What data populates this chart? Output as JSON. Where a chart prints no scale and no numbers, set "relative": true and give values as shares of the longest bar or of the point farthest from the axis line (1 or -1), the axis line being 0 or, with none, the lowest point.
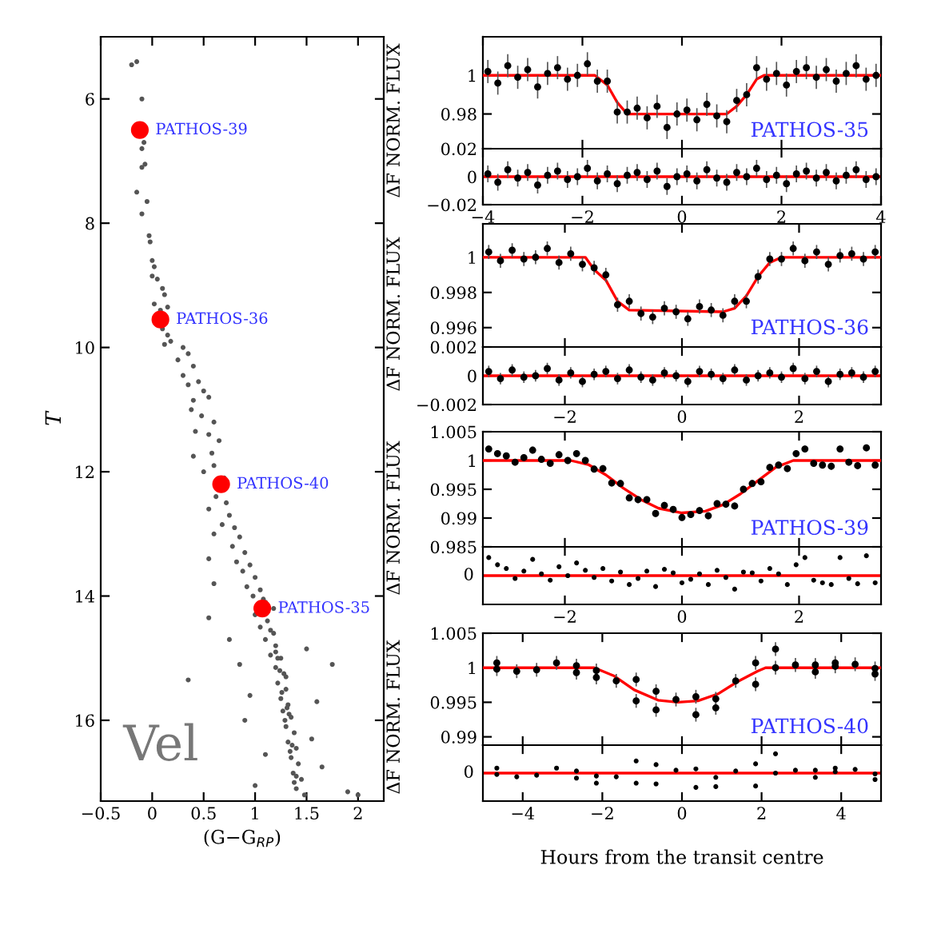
{
  "chart_data": [
    {
      "type": "scatter",
      "title": "Vel",
      "xlabel": "(G−G$_{RP}$)",
      "ylabel": "T",
      "xlim": [
        -0.5,
        2.25
      ],
      "ylim": [
        17.3,
        5
      ],
      "xticks": [
        {
          "value": -0.5,
          "label": "−0.5"
        },
        0,
        0.5,
        1,
        1.5,
        2
      ],
      "yticks": [
        6,
        8,
        10,
        12,
        14,
        16
      ],
      "annotations": [
        {
          "text": "PATHOS-39",
          "x": -0.12,
          "y": 6.5
        },
        {
          "text": "PATHOS-36",
          "x": 0.08,
          "y": 9.55
        },
        {
          "text": "PATHOS-40",
          "x": 0.67,
          "y": 12.2
        },
        {
          "text": "PATHOS-35",
          "x": 1.07,
          "y": 14.2
        }
      ],
      "series": [
        {
          "color": "#555555",
          "marker": "circle",
          "x": [
            -0.2,
            -0.15,
            -0.1,
            -0.08,
            -0.1,
            -0.07,
            -0.1,
            -0.15,
            -0.05,
            -0.1,
            -0.03,
            -0.02,
            0.0,
            0.02,
            0.0,
            0.05,
            0.1,
            0.12,
            0.02,
            0.08,
            0.15,
            0.1,
            0.15,
            0.18,
            0.12,
            0.3,
            0.35,
            0.25,
            0.4,
            0.3,
            0.45,
            0.35,
            0.5,
            0.4,
            0.55,
            0.38,
            0.48,
            0.6,
            0.42,
            0.55,
            0.65,
            0.4,
            0.58,
            0.6,
            0.5,
            0.7,
            0.62,
            0.72,
            0.55,
            0.75,
            0.68,
            0.8,
            0.6,
            0.85,
            0.78,
            0.9,
            0.55,
            0.82,
            0.95,
            0.88,
            1.0,
            0.6,
            0.92,
            1.05,
            0.98,
            0.55,
            1.1,
            1.0,
            1.12,
            1.05,
            1.18,
            0.75,
            1.1,
            1.2,
            1.15,
            1.25,
            0.85,
            1.5,
            1.2,
            1.28,
            0.35,
            1.75,
            1.22,
            1.3,
            0.95,
            1.25,
            1.32,
            1.6,
            1.27,
            1.35,
            0.9,
            1.3,
            1.38,
            1.55,
            1.32,
            1.4,
            1.1,
            1.35,
            1.42,
            1.65,
            1.37,
            1.45,
            1.0,
            1.4,
            1.48,
            1.9,
            2.0,
            1.22,
            1.3,
            1.33,
            1.36,
            1.4,
            1.38,
            1.18,
            1.15,
            1.08,
            1.26,
            1.29,
            1.34,
            1.31,
            1.24,
            1.2
          ],
          "values": [
            5.45,
            5.4,
            6.0,
            6.7,
            6.8,
            7.05,
            7.1,
            7.5,
            7.65,
            7.85,
            8.2,
            8.3,
            8.6,
            8.7,
            8.85,
            8.9,
            9.05,
            9.15,
            9.3,
            9.4,
            9.35,
            9.7,
            9.8,
            9.9,
            9.95,
            10.0,
            10.1,
            10.2,
            10.3,
            10.45,
            10.55,
            10.6,
            10.7,
            10.85,
            10.8,
            11.0,
            11.1,
            11.2,
            11.35,
            11.4,
            11.5,
            11.75,
            11.7,
            11.9,
            12.0,
            12.1,
            12.4,
            12.5,
            12.6,
            12.7,
            12.85,
            12.9,
            13.0,
            13.05,
            13.2,
            13.3,
            13.4,
            13.45,
            13.5,
            13.6,
            13.7,
            13.8,
            13.85,
            13.9,
            14.0,
            14.35,
            14.1,
            14.3,
            14.4,
            14.5,
            14.6,
            14.7,
            14.7,
            14.8,
            14.95,
            15.0,
            15.1,
            14.85,
            15.15,
            15.25,
            15.35,
            15.1,
            15.4,
            15.5,
            15.6,
            15.65,
            15.75,
            15.7,
            15.85,
            15.95,
            16.0,
            16.1,
            16.2,
            16.3,
            16.35,
            16.45,
            16.55,
            16.6,
            16.7,
            16.75,
            16.85,
            16.95,
            17.05,
            17.1,
            17.2,
            17.15,
            17.2,
            15.0,
            15.3,
            15.9,
            16.4,
            16.9,
            17.0,
            14.2,
            14.55,
            14.05,
            15.55,
            16.0,
            16.5,
            15.8,
            15.2,
            14.9
          ]
        },
        {
          "color": "#ff0000",
          "marker": "circle",
          "x": [
            -0.12,
            0.08,
            0.67,
            1.07
          ],
          "values": [
            6.5,
            9.55,
            12.2,
            14.2
          ]
        }
      ]
    },
    {
      "type": "scatter",
      "ylabel": "ΔF NORM. FLUX",
      "annotations": [
        "PATHOS-35"
      ],
      "xlim": [
        -4,
        4
      ],
      "ylim": [
        0.962,
        1.02
      ],
      "xticks": [
        {
          "value": -4,
          "label": null
        },
        {
          "value": -2,
          "label": null
        },
        {
          "value": 0,
          "label": null
        },
        {
          "value": 2,
          "label": null
        },
        {
          "value": 4,
          "label": null
        }
      ],
      "yticks": [
        1,
        0.98
      ],
      "tick_labels": "y",
      "series": [
        {
          "color": "#000000",
          "marker": "circle",
          "x": [
            -3.9,
            -3.7,
            -3.5,
            -3.3,
            -3.1,
            -2.9,
            -2.7,
            -2.5,
            -2.3,
            -2.1,
            -1.9,
            -1.7,
            -1.5,
            -1.3,
            -1.1,
            -0.9,
            -0.7,
            -0.5,
            -0.3,
            -0.1,
            0.1,
            0.3,
            0.5,
            0.7,
            0.9,
            1.1,
            1.3,
            1.5,
            1.7,
            1.9,
            2.1,
            2.3,
            2.5,
            2.7,
            2.9,
            3.1,
            3.3,
            3.5,
            3.7,
            3.9
          ],
          "values": [
            1.002,
            0.996,
            1.005,
            0.999,
            1.003,
            0.994,
            1.001,
            1.004,
            0.998,
            1.0,
            1.006,
            0.997,
            0.997,
            0.981,
            0.981,
            0.983,
            0.978,
            0.984,
            0.973,
            0.98,
            0.982,
            0.977,
            0.985,
            0.979,
            0.976,
            0.987,
            0.99,
            1.004,
            0.998,
            1.001,
            0.995,
            1.002,
            1.004,
            0.999,
            1.003,
            0.997,
            1.001,
            1.005,
            0.998,
            1.0
          ],
          "errors": [
            0.006,
            0.006,
            0.006,
            0.006,
            0.006,
            0.006,
            0.006,
            0.006,
            0.006,
            0.006,
            0.006,
            0.006,
            0.006,
            0.006,
            0.006,
            0.006,
            0.006,
            0.006,
            0.006,
            0.006,
            0.006,
            0.006,
            0.006,
            0.006,
            0.006,
            0.006,
            0.006,
            0.006,
            0.006,
            0.006,
            0.006,
            0.006,
            0.006,
            0.006,
            0.006,
            0.006,
            0.006,
            0.006,
            0.006,
            0.006
          ]
        },
        {
          "type": "line",
          "color": "#ff0000",
          "x": [
            -4,
            -1.75,
            -1.5,
            -1.3,
            -1.1,
            0.9,
            1.1,
            1.3,
            1.5,
            1.65,
            4
          ],
          "values": [
            1,
            1,
            0.995,
            0.986,
            0.98,
            0.98,
            0.984,
            0.99,
            0.998,
            1,
            1
          ]
        }
      ]
    },
    {
      "type": "scatter",
      "xlim": [
        -4,
        4
      ],
      "ylim": [
        -0.02,
        0.02
      ],
      "xticks": [
        {
          "value": -4,
          "label": "−4"
        },
        {
          "value": -2,
          "label": "−2"
        },
        0,
        2,
        4
      ],
      "yticks": [
        0.02,
        0,
        {
          "value": -0.02,
          "label": "−0.02"
        }
      ],
      "ref_lines": [
        {
          "axis": "y",
          "value": 0,
          "color": "#ff0000"
        }
      ],
      "series": [
        {
          "color": "#000000",
          "marker": "circle",
          "x": [
            -3.9,
            -3.7,
            -3.5,
            -3.3,
            -3.1,
            -2.9,
            -2.7,
            -2.5,
            -2.3,
            -2.1,
            -1.9,
            -1.7,
            -1.5,
            -1.3,
            -1.1,
            -0.9,
            -0.7,
            -0.5,
            -0.3,
            -0.1,
            0.1,
            0.3,
            0.5,
            0.7,
            0.9,
            1.1,
            1.3,
            1.5,
            1.7,
            1.9,
            2.1,
            2.3,
            2.5,
            2.7,
            2.9,
            3.1,
            3.3,
            3.5,
            3.7,
            3.9
          ],
          "values": [
            0.002,
            -0.004,
            0.005,
            -0.001,
            0.003,
            -0.006,
            0.001,
            0.004,
            -0.002,
            0.0,
            0.006,
            -0.003,
            0.002,
            -0.005,
            0.001,
            0.003,
            -0.002,
            0.004,
            -0.007,
            0.0,
            0.002,
            -0.003,
            0.005,
            -0.001,
            -0.004,
            0.003,
            0.0,
            0.006,
            -0.002,
            0.001,
            -0.005,
            0.002,
            0.004,
            -0.001,
            0.003,
            -0.003,
            0.001,
            0.005,
            -0.002,
            0.0
          ],
          "errors": [
            0.006,
            0.006,
            0.006,
            0.006,
            0.006,
            0.006,
            0.006,
            0.006,
            0.006,
            0.006,
            0.006,
            0.006,
            0.006,
            0.006,
            0.006,
            0.006,
            0.006,
            0.006,
            0.006,
            0.006,
            0.006,
            0.006,
            0.006,
            0.006,
            0.006,
            0.006,
            0.006,
            0.006,
            0.006,
            0.006,
            0.006,
            0.006,
            0.006,
            0.006,
            0.006,
            0.006,
            0.006,
            0.006,
            0.006,
            0.006
          ]
        }
      ]
    },
    {
      "type": "scatter",
      "ylabel": "ΔF NORM. FLUX",
      "annotations": [
        "PATHOS-36"
      ],
      "xlim": [
        -3.4,
        3.4
      ],
      "ylim": [
        0.9949,
        1.0019
      ],
      "xticks": [
        {
          "value": -2,
          "label": null
        },
        {
          "value": 0,
          "label": null
        },
        {
          "value": 2,
          "label": null
        }
      ],
      "yticks": [
        1,
        0.998,
        0.996
      ],
      "tick_labels": "y",
      "series": [
        {
          "color": "#000000",
          "marker": "circle",
          "x": [
            -3.3,
            -3.1,
            -2.9,
            -2.7,
            -2.5,
            -2.3,
            -2.1,
            -1.9,
            -1.7,
            -1.5,
            -1.3,
            -1.1,
            -0.9,
            -0.7,
            -0.5,
            -0.3,
            -0.1,
            0.1,
            0.3,
            0.5,
            0.7,
            0.9,
            1.1,
            1.3,
            1.5,
            1.7,
            1.9,
            2.1,
            2.3,
            2.5,
            2.7,
            2.9,
            3.1,
            3.3
          ],
          "values": [
            1.0003,
            0.9998,
            1.0004,
            0.9999,
            1.0,
            1.0005,
            0.9997,
            1.0002,
            0.9996,
            0.9994,
            0.999,
            0.9973,
            0.9975,
            0.9968,
            0.9966,
            0.9971,
            0.9969,
            0.9965,
            0.9972,
            0.997,
            0.9967,
            0.9975,
            0.9975,
            0.9989,
            0.9999,
            0.9999,
            1.0005,
            0.9998,
            1.0003,
            0.9996,
            1.0001,
            1.0002,
            0.9999,
            1.0003
          ],
          "errors": [
            0.0004,
            0.0004,
            0.0004,
            0.0004,
            0.0004,
            0.0004,
            0.0004,
            0.0004,
            0.0004,
            0.0004,
            0.0004,
            0.0004,
            0.0004,
            0.0004,
            0.0004,
            0.0004,
            0.0004,
            0.0004,
            0.0004,
            0.0004,
            0.0004,
            0.0004,
            0.0004,
            0.0004,
            0.0004,
            0.0004,
            0.0004,
            0.0004,
            0.0004,
            0.0004,
            0.0004,
            0.0004,
            0.0004,
            0.0004
          ]
        },
        {
          "type": "line",
          "color": "#ff0000",
          "x": [
            -3.4,
            -1.65,
            -1.5,
            -1.3,
            -1.1,
            -0.9,
            0.7,
            0.9,
            1.1,
            1.3,
            1.5,
            1.7,
            3.4
          ],
          "values": [
            1,
            1,
            0.9993,
            0.9987,
            0.9975,
            0.997,
            0.9969,
            0.9971,
            0.9978,
            0.9989,
            0.9997,
            1,
            1
          ]
        }
      ]
    },
    {
      "type": "scatter",
      "xlim": [
        -3.4,
        3.4
      ],
      "ylim": [
        -0.002,
        0.002
      ],
      "xticks": [
        {
          "value": -2,
          "label": "−2"
        },
        0,
        2
      ],
      "yticks": [
        0.002,
        0,
        {
          "value": -0.002,
          "label": "−0.002"
        }
      ],
      "ref_lines": [
        {
          "axis": "y",
          "value": 0,
          "color": "#ff0000"
        }
      ],
      "series": [
        {
          "color": "#000000",
          "marker": "circle",
          "x": [
            -3.3,
            -3.1,
            -2.9,
            -2.7,
            -2.5,
            -2.3,
            -2.1,
            -1.9,
            -1.7,
            -1.5,
            -1.3,
            -1.1,
            -0.9,
            -0.7,
            -0.5,
            -0.3,
            -0.1,
            0.1,
            0.3,
            0.5,
            0.7,
            0.9,
            1.1,
            1.3,
            1.5,
            1.7,
            1.9,
            2.1,
            2.3,
            2.5,
            2.7,
            2.9,
            3.1,
            3.3
          ],
          "values": [
            0.0003,
            -0.0002,
            0.0004,
            -0.0001,
            0.0,
            0.0005,
            -0.0003,
            0.0002,
            -0.0004,
            0.0001,
            0.0003,
            -0.0002,
            0.0004,
            -0.0001,
            -0.0003,
            0.0002,
            0.0,
            -0.0004,
            0.0003,
            0.0001,
            -0.0002,
            0.0004,
            -0.0003,
            0.0,
            0.0002,
            -0.0001,
            0.0005,
            -0.0002,
            0.0003,
            -0.0004,
            0.0001,
            0.0002,
            -0.0001,
            0.0003
          ],
          "errors": [
            0.0004,
            0.0004,
            0.0004,
            0.0004,
            0.0004,
            0.0004,
            0.0004,
            0.0004,
            0.0004,
            0.0004,
            0.0004,
            0.0004,
            0.0004,
            0.0004,
            0.0004,
            0.0004,
            0.0004,
            0.0004,
            0.0004,
            0.0004,
            0.0004,
            0.0004,
            0.0004,
            0.0004,
            0.0004,
            0.0004,
            0.0004,
            0.0004,
            0.0004,
            0.0004,
            0.0004,
            0.0004,
            0.0004,
            0.0004
          ]
        }
      ]
    },
    {
      "type": "scatter",
      "ylabel": "ΔF NORM. FLUX",
      "annotations": [
        "PATHOS-39"
      ],
      "xlim": [
        -3.4,
        3.4
      ],
      "ylim": [
        0.985,
        1.005
      ],
      "xticks": [
        {
          "value": -2,
          "label": null
        },
        {
          "value": 0,
          "label": null
        },
        {
          "value": 2,
          "label": null
        }
      ],
      "yticks": [
        1.005,
        1,
        0.995,
        0.99,
        0.985
      ],
      "tick_labels": "y",
      "series": [
        {
          "color": "#000000",
          "marker": "circle",
          "x": [
            -3.3,
            -3.15,
            -3.0,
            -2.85,
            -2.7,
            -2.55,
            -2.4,
            -2.25,
            -2.1,
            -1.95,
            -1.8,
            -1.65,
            -1.5,
            -1.35,
            -1.2,
            -1.05,
            -0.9,
            -0.75,
            -0.6,
            -0.45,
            -0.3,
            -0.15,
            0,
            0.15,
            0.3,
            0.45,
            0.6,
            0.75,
            0.9,
            1.05,
            1.2,
            1.35,
            1.5,
            1.65,
            1.8,
            1.95,
            2.1,
            2.25,
            2.4,
            2.55,
            2.7,
            2.85,
            3.0,
            3.15,
            3.3
          ],
          "values": [
            1.002,
            1.0012,
            1.0008,
            0.9997,
            1.0005,
            1.0018,
            1.0002,
            0.9995,
            1.001,
            1.0,
            1.0012,
            1.0,
            0.9985,
            0.9986,
            0.9961,
            0.996,
            0.9935,
            0.9932,
            0.9932,
            0.9908,
            0.9922,
            0.9915,
            0.9901,
            0.9906,
            0.9913,
            0.9904,
            0.9925,
            0.9924,
            0.9921,
            0.995,
            0.996,
            0.9963,
            0.9988,
            0.9992,
            0.9986,
            1.0012,
            1.002,
            0.9995,
            0.9992,
            0.999,
            1.002,
            0.9997,
            0.9991,
            1.0022,
            0.9992
          ],
          "errors": [
            0.0006,
            0.0006,
            0.0006,
            0.0006,
            0.0006,
            0.0006,
            0.0006,
            0.0006,
            0.0006,
            0.0006,
            0.0006,
            0.0006,
            0.0006,
            0.0006,
            0.0006,
            0.0006,
            0.0006,
            0.0006,
            0.0006,
            0.0006,
            0.0006,
            0.0006,
            0.0006,
            0.0006,
            0.0006,
            0.0006,
            0.0006,
            0.0006,
            0.0006,
            0.0006,
            0.0006,
            0.0006,
            0.0006,
            0.0006,
            0.0006,
            0.0006,
            0.0006,
            0.0006,
            0.0006,
            0.0006,
            0.0006,
            0.0006,
            0.0006,
            0.0006,
            0.0006
          ]
        },
        {
          "type": "line",
          "color": "#ff0000",
          "x": [
            -3.4,
            -1.9,
            -1.6,
            -1.3,
            -1.0,
            -0.7,
            -0.4,
            0,
            0.4,
            0.7,
            1.0,
            1.3,
            1.6,
            1.9,
            3.4
          ],
          "values": [
            1,
            1,
            0.9993,
            0.9975,
            0.9952,
            0.9932,
            0.9917,
            0.9909,
            0.9912,
            0.9923,
            0.9942,
            0.9965,
            0.9988,
            1,
            1
          ]
        }
      ]
    },
    {
      "type": "scatter",
      "relative": true,
      "xlim": [
        -3.4,
        3.4
      ],
      "xticks": [
        {
          "value": -2,
          "label": "−2"
        },
        0,
        2
      ],
      "annotations": [
        "0"
      ],
      "ref_lines": [
        {
          "axis": "y",
          "value": 0,
          "color": "#ff0000"
        }
      ],
      "series": [
        {
          "color": "#000000",
          "marker": "circle",
          "x": [
            -3.3,
            -3.15,
            -3.0,
            -2.85,
            -2.7,
            -2.55,
            -2.4,
            -2.25,
            -2.1,
            -1.95,
            -1.8,
            -1.65,
            -1.5,
            -1.35,
            -1.2,
            -1.05,
            -0.9,
            -0.75,
            -0.6,
            -0.45,
            -0.3,
            -0.15,
            0,
            0.15,
            0.3,
            0.45,
            0.6,
            0.75,
            0.9,
            1.05,
            1.2,
            1.35,
            1.5,
            1.65,
            1.8,
            1.95,
            2.1,
            2.25,
            2.4,
            2.55,
            2.7,
            2.85,
            3.0,
            3.15,
            3.3
          ],
          "values": [
            0.91,
            0.55,
            0.36,
            -0.14,
            0.23,
            0.82,
            0.09,
            -0.23,
            0.45,
            0,
            0.64,
            0.27,
            -0.09,
            0.36,
            -0.27,
            0.18,
            -0.45,
            -0.14,
            0.23,
            -0.55,
            0.32,
            0.14,
            -0.36,
            -0.18,
            0.09,
            -0.45,
            0.27,
            -0.09,
            -0.68,
            0.18,
            0.14,
            -0.27,
            0.36,
            0.09,
            -0.45,
            0.55,
            0.91,
            -0.23,
            -0.36,
            -0.45,
            0.91,
            -0.14,
            -0.41,
            1,
            -0.36
          ]
        }
      ]
    },
    {
      "type": "scatter",
      "ylabel": "ΔF NORM. FLUX",
      "annotations": [
        "PATHOS-40"
      ],
      "xlim": [
        -5,
        5
      ],
      "ylim": [
        0.9888,
        1.005
      ],
      "xticks": [
        {
          "value": -4,
          "label": null
        },
        {
          "value": -2,
          "label": null
        },
        {
          "value": 0,
          "label": null
        },
        {
          "value": 2,
          "label": null
        },
        {
          "value": 4,
          "label": null
        }
      ],
      "yticks": [
        1.005,
        1,
        0.995,
        0.99
      ],
      "tick_labels": "y",
      "series": [
        {
          "color": "#000000",
          "marker": "circle",
          "x": [
            -4.65,
            -4.65,
            -4.15,
            -3.65,
            -3.15,
            -2.65,
            -2.65,
            -2.15,
            -2.15,
            -1.65,
            -1.15,
            -1.15,
            -0.65,
            -0.65,
            -0.15,
            0.35,
            0.35,
            0.85,
            0.85,
            1.35,
            1.85,
            1.85,
            2.35,
            2.35,
            2.85,
            3.35,
            3.35,
            3.85,
            3.85,
            4.35,
            4.85,
            4.85
          ],
          "values": [
            1.0007,
            0.9998,
            0.9995,
            0.9997,
            1.0007,
            1.0003,
            0.9993,
            0.9996,
            0.9986,
            0.9981,
            0.9983,
            0.9952,
            0.9966,
            0.9939,
            0.9954,
            0.9958,
            0.9932,
            0.9955,
            0.9942,
            0.9981,
            1.0007,
            0.9976,
            1.0027,
            1.0,
            1.0004,
            1.0004,
            0.9994,
            1.0007,
            1.0002,
            1.0005,
            0.9999,
            0.9991
          ],
          "errors": [
            0.001,
            0.001,
            0.001,
            0.001,
            0.001,
            0.001,
            0.001,
            0.001,
            0.001,
            0.001,
            0.001,
            0.001,
            0.001,
            0.001,
            0.001,
            0.001,
            0.001,
            0.001,
            0.001,
            0.001,
            0.001,
            0.001,
            0.001,
            0.001,
            0.001,
            0.001,
            0.001,
            0.001,
            0.001,
            0.001,
            0.001,
            0.001
          ]
        },
        {
          "type": "line",
          "color": "#ff0000",
          "x": [
            -5,
            -2.2,
            -1.7,
            -1.2,
            -0.6,
            -0.1,
            0.4,
            0.9,
            1.4,
            1.9,
            2.1,
            5
          ],
          "values": [
            1,
            1,
            0.9988,
            0.9968,
            0.9953,
            0.995,
            0.9952,
            0.9962,
            0.998,
            0.9995,
            1,
            1
          ]
        }
      ]
    },
    {
      "type": "scatter",
      "relative": true,
      "xlabel": "Hours from the transit centre",
      "xlim": [
        -5,
        5
      ],
      "xticks": [
        {
          "value": -4,
          "label": "−4"
        },
        {
          "value": -2,
          "label": "−2"
        },
        0,
        2,
        4
      ],
      "annotations": [
        "0"
      ],
      "ref_lines": [
        {
          "axis": "y",
          "value": 0,
          "color": "#ff0000"
        }
      ],
      "series": [
        {
          "color": "#000000",
          "marker": "circle",
          "x": [
            -4.65,
            -4.65,
            -4.15,
            -3.65,
            -3.15,
            -2.65,
            -2.65,
            -2.15,
            -2.15,
            -1.65,
            -1.15,
            -1.15,
            -0.65,
            -0.65,
            -0.15,
            0.35,
            0.35,
            0.85,
            0.85,
            1.35,
            1.85,
            1.85,
            2.35,
            2.35,
            2.85,
            3.35,
            3.35,
            3.85,
            3.85,
            4.35,
            4.85,
            4.85
          ],
          "values": [
            0.26,
            -0.07,
            -0.19,
            -0.11,
            0.26,
            0.11,
            -0.26,
            -0.15,
            -0.52,
            -0.19,
            0.63,
            -0.52,
            0.44,
            -0.56,
            0.15,
            0.22,
            -0.74,
            -0.22,
            -0.7,
            0.11,
            0.48,
            -0.67,
            1,
            0,
            0.15,
            0.15,
            -0.22,
            0.26,
            0.07,
            0.19,
            -0.04,
            -0.33
          ]
        }
      ]
    }
  ]
}
